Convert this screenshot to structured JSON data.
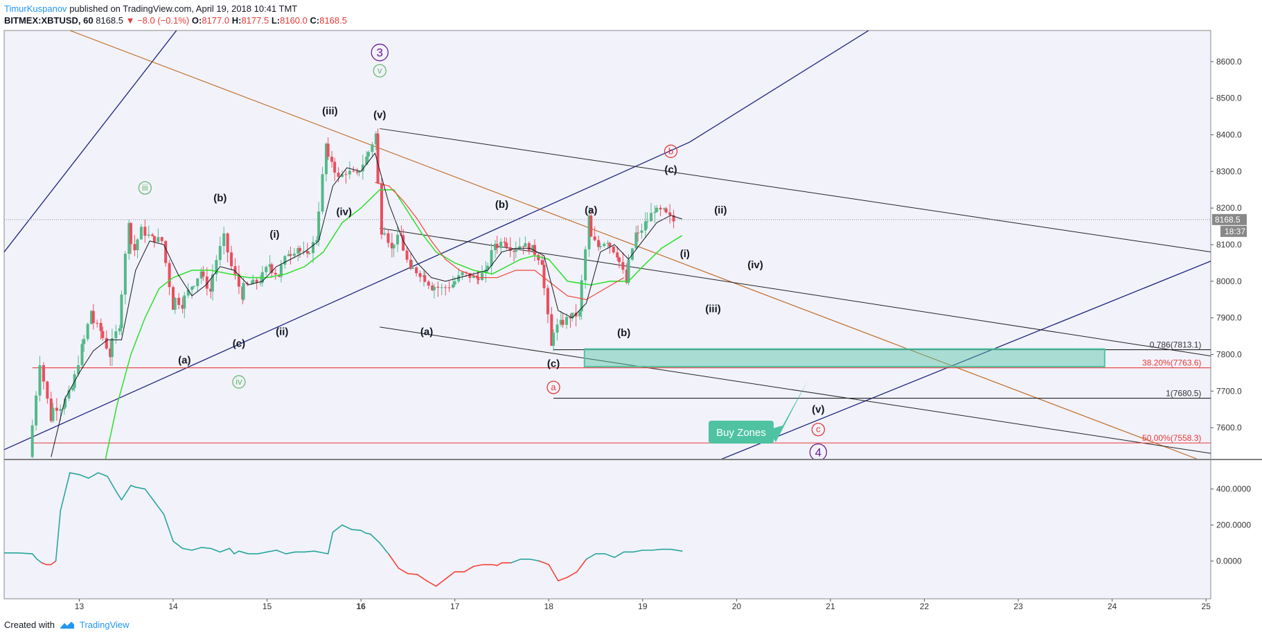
{
  "header": {
    "author": "TimurKuspanov",
    "published": "published on TradingView.com, April 19, 2018 10:41 TMT",
    "symbol": "BITMEX:XBTUSD, 60",
    "last": "8168.5",
    "change": "−8.0 (−0.1%)",
    "open_label": "O:",
    "open": "8177.0",
    "high_label": "H:",
    "high": "8177.5",
    "low_label": "L:",
    "low": "8160.0",
    "close_label": "C:",
    "close": "8168.5"
  },
  "footer": {
    "created_with": "Created with",
    "brand": "TradingView"
  },
  "colors": {
    "bull": "#26a69a",
    "bull_candle": "#53b987",
    "bear": "#eb4d5c",
    "ma_fast": "#131722",
    "ma_green": "#34e034",
    "ma_red": "#f44336",
    "channel": "#1a237e",
    "trend": "#c0651a",
    "zone": "#4fc3a1"
  },
  "chart_data": [
    {
      "type": "candlestick",
      "title": "BITMEX:XBTUSD, 60",
      "x_ticks": [
        "13",
        "14",
        "15",
        "16",
        "17",
        "18",
        "19",
        "20",
        "21",
        "22",
        "23",
        "24",
        "25"
      ],
      "x_range": [
        12.2,
        25.05
      ],
      "y_ticks": [
        "8600.0",
        "8500.0",
        "8400.0",
        "8300.0",
        "8200.0",
        "8100.0",
        "8000.0",
        "7900.0",
        "7800.0",
        "7700.0",
        "7600.0"
      ],
      "ylim": [
        7515,
        8685
      ],
      "last_price": {
        "value": 8168.5,
        "label": "8168.5",
        "countdown": "18:37"
      },
      "price_path": [
        [
          12.5,
          7520
        ],
        [
          12.62,
          7780
        ],
        [
          12.72,
          7650
        ],
        [
          12.85,
          7660
        ],
        [
          12.95,
          7700
        ],
        [
          13.05,
          7800
        ],
        [
          13.15,
          7900
        ],
        [
          13.25,
          7870
        ],
        [
          13.35,
          7810
        ],
        [
          13.45,
          7870
        ],
        [
          13.55,
          8120
        ],
        [
          13.62,
          8090
        ],
        [
          13.7,
          8140
        ],
        [
          13.8,
          8120
        ],
        [
          13.92,
          8110
        ],
        [
          14.02,
          7960
        ],
        [
          14.12,
          7940
        ],
        [
          14.22,
          7980
        ],
        [
          14.32,
          8020
        ],
        [
          14.42,
          7980
        ],
        [
          14.5,
          8060
        ],
        [
          14.58,
          8120
        ],
        [
          14.66,
          8040
        ],
        [
          14.75,
          7980
        ],
        [
          14.85,
          7990
        ],
        [
          14.95,
          8000
        ],
        [
          15.05,
          8040
        ],
        [
          15.15,
          8020
        ],
        [
          15.25,
          8070
        ],
        [
          15.35,
          8090
        ],
        [
          15.45,
          8070
        ],
        [
          15.55,
          8110
        ],
        [
          15.65,
          8330
        ],
        [
          15.72,
          8330
        ],
        [
          15.8,
          8280
        ],
        [
          15.88,
          8300
        ],
        [
          15.98,
          8290
        ],
        [
          16.08,
          8330
        ],
        [
          16.18,
          8390
        ],
        [
          16.25,
          8170
        ],
        [
          16.35,
          8100
        ],
        [
          16.45,
          8120
        ],
        [
          16.55,
          8040
        ],
        [
          16.68,
          8020
        ],
        [
          16.78,
          7990
        ],
        [
          16.9,
          7980
        ],
        [
          17.0,
          7990
        ],
        [
          17.12,
          8020
        ],
        [
          17.25,
          8010
        ],
        [
          17.35,
          8020
        ],
        [
          17.45,
          8090
        ],
        [
          17.55,
          8110
        ],
        [
          17.65,
          8090
        ],
        [
          17.75,
          8100
        ],
        [
          17.85,
          8090
        ],
        [
          17.95,
          8060
        ],
        [
          18.05,
          7860
        ],
        [
          18.15,
          7880
        ],
        [
          18.25,
          7900
        ],
        [
          18.35,
          7910
        ],
        [
          18.45,
          8130
        ],
        [
          18.55,
          8100
        ],
        [
          18.65,
          8110
        ],
        [
          18.75,
          8080
        ],
        [
          18.85,
          8010
        ],
        [
          18.95,
          8110
        ],
        [
          19.05,
          8150
        ],
        [
          19.15,
          8190
        ],
        [
          19.25,
          8190
        ],
        [
          19.35,
          8168.5
        ]
      ],
      "ma_fast": [
        [
          12.7,
          7520
        ],
        [
          12.85,
          7680
        ],
        [
          13.0,
          7750
        ],
        [
          13.15,
          7810
        ],
        [
          13.3,
          7840
        ],
        [
          13.45,
          7840
        ],
        [
          13.6,
          8030
        ],
        [
          13.75,
          8110
        ],
        [
          13.9,
          8100
        ],
        [
          14.05,
          8020
        ],
        [
          14.2,
          7960
        ],
        [
          14.35,
          7990
        ],
        [
          14.5,
          8040
        ],
        [
          14.65,
          8030
        ],
        [
          14.8,
          7990
        ],
        [
          14.95,
          8000
        ],
        [
          15.1,
          8040
        ],
        [
          15.25,
          8060
        ],
        [
          15.4,
          8080
        ],
        [
          15.55,
          8110
        ],
        [
          15.7,
          8260
        ],
        [
          15.85,
          8310
        ],
        [
          16.0,
          8300
        ],
        [
          16.15,
          8350
        ],
        [
          16.3,
          8210
        ],
        [
          16.45,
          8110
        ],
        [
          16.6,
          8050
        ],
        [
          16.75,
          8010
        ],
        [
          16.9,
          8000
        ],
        [
          17.05,
          8010
        ],
        [
          17.2,
          8020
        ],
        [
          17.35,
          8030
        ],
        [
          17.5,
          8080
        ],
        [
          17.65,
          8090
        ],
        [
          17.8,
          8090
        ],
        [
          17.95,
          8070
        ],
        [
          18.1,
          7920
        ],
        [
          18.25,
          7900
        ],
        [
          18.4,
          7940
        ],
        [
          18.55,
          8080
        ],
        [
          18.7,
          8100
        ],
        [
          18.85,
          8060
        ],
        [
          19.0,
          8110
        ],
        [
          19.15,
          8160
        ],
        [
          19.3,
          8180
        ],
        [
          19.42,
          8170
        ]
      ],
      "ma_green": [
        [
          13.28,
          7515
        ],
        [
          13.4,
          7660
        ],
        [
          13.55,
          7800
        ],
        [
          13.7,
          7900
        ],
        [
          13.85,
          7980
        ],
        [
          14.0,
          8010
        ],
        [
          14.2,
          8030
        ],
        [
          14.4,
          8030
        ],
        [
          14.6,
          8020
        ],
        [
          14.8,
          8010
        ],
        [
          15.0,
          8010
        ],
        [
          15.2,
          8020
        ],
        [
          15.4,
          8040
        ],
        [
          15.6,
          8080
        ],
        [
          15.8,
          8160
        ],
        [
          16.0,
          8200
        ],
        [
          16.2,
          8250
        ],
        [
          16.35,
          8250
        ],
        [
          16.5,
          8190
        ],
        [
          16.65,
          8130
        ],
        [
          16.8,
          8080
        ],
        [
          17.0,
          8050
        ],
        [
          17.2,
          8030
        ],
        [
          17.4,
          8020
        ],
        [
          17.55,
          8040
        ],
        [
          17.7,
          8060
        ],
        [
          17.85,
          8070
        ],
        [
          18.0,
          8060
        ],
        [
          18.2,
          8000
        ],
        [
          18.45,
          7990
        ],
        [
          18.65,
          8000
        ],
        [
          18.85,
          8000
        ],
        [
          19.0,
          8040
        ],
        [
          19.2,
          8090
        ],
        [
          19.42,
          8125
        ]
      ],
      "ma_red": [
        [
          16.15,
          8270
        ],
        [
          16.3,
          8260
        ],
        [
          16.45,
          8220
        ],
        [
          16.6,
          8170
        ],
        [
          16.75,
          8110
        ],
        [
          16.9,
          8060
        ],
        [
          17.05,
          8030
        ],
        [
          17.25,
          8010
        ],
        [
          17.45,
          8010
        ],
        [
          17.65,
          8030
        ],
        [
          17.85,
          8030
        ],
        [
          18.05,
          7990
        ],
        [
          18.2,
          7960
        ],
        [
          18.4,
          7950
        ],
        [
          18.6,
          7980
        ],
        [
          18.8,
          8010
        ]
      ],
      "fibonacci": [
        {
          "label": "0.786(7813.1)",
          "value": 7813.1
        },
        {
          "label": "38.20%(7763.6)",
          "value": 7763.6
        },
        {
          "label": "1(7680.5)",
          "value": 7680.5
        },
        {
          "label": "50.00%(7558.3)",
          "value": 7558.3
        }
      ],
      "buy_zone": {
        "from_x": 18.38,
        "to_x": 23.92,
        "top": 7815,
        "bottom": 7767,
        "label": "Buy Zones"
      },
      "wave_labels": [
        {
          "text": "3",
          "x": 16.2,
          "y": 8625,
          "style": "circle-purple"
        },
        {
          "text": "v",
          "x": 16.2,
          "y": 8575,
          "style": "circle-green"
        },
        {
          "text": "(v)",
          "x": 16.2,
          "y": 8455,
          "style": "plain"
        },
        {
          "text": "(iii)",
          "x": 15.67,
          "y": 8465,
          "style": "plain"
        },
        {
          "text": "(iv)",
          "x": 15.82,
          "y": 8190,
          "style": "plain"
        },
        {
          "text": "iii",
          "x": 13.7,
          "y": 8255,
          "style": "circle-green"
        },
        {
          "text": "(b)",
          "x": 14.5,
          "y": 8228,
          "style": "plain"
        },
        {
          "text": "(i)",
          "x": 15.08,
          "y": 8128,
          "style": "plain"
        },
        {
          "text": "(ii)",
          "x": 15.16,
          "y": 7862,
          "style": "plain"
        },
        {
          "text": "(c)",
          "x": 14.7,
          "y": 7830,
          "style": "plain"
        },
        {
          "text": "(a)",
          "x": 14.12,
          "y": 7785,
          "style": "plain"
        },
        {
          "text": "iv",
          "x": 14.7,
          "y": 7725,
          "style": "circle-green"
        },
        {
          "text": "(a)",
          "x": 16.7,
          "y": 7862,
          "style": "plain"
        },
        {
          "text": "(b)",
          "x": 17.5,
          "y": 8210,
          "style": "plain"
        },
        {
          "text": "(c)",
          "x": 18.05,
          "y": 7775,
          "style": "plain"
        },
        {
          "text": "a",
          "x": 18.05,
          "y": 7710,
          "style": "circle-red"
        },
        {
          "text": "(a)",
          "x": 18.45,
          "y": 8195,
          "style": "plain"
        },
        {
          "text": "(b)",
          "x": 18.8,
          "y": 7860,
          "style": "plain"
        },
        {
          "text": "b",
          "x": 19.3,
          "y": 8355,
          "style": "circle-red"
        },
        {
          "text": "(c)",
          "x": 19.3,
          "y": 8305,
          "style": "plain"
        },
        {
          "text": "(ii)",
          "x": 19.83,
          "y": 8195,
          "style": "plain"
        },
        {
          "text": "(i)",
          "x": 19.45,
          "y": 8075,
          "style": "plain"
        },
        {
          "text": "(iv)",
          "x": 20.2,
          "y": 8045,
          "style": "plain"
        },
        {
          "text": "(iii)",
          "x": 19.75,
          "y": 7925,
          "style": "plain"
        },
        {
          "text": "(v)",
          "x": 20.87,
          "y": 7650,
          "style": "plain"
        },
        {
          "text": "c",
          "x": 20.87,
          "y": 7595,
          "style": "circle-red"
        },
        {
          "text": "4",
          "x": 20.87,
          "y": 7533,
          "style": "circle-purple"
        }
      ]
    },
    {
      "type": "line",
      "title": "",
      "y_ticks": [
        "400.0000",
        "200.0000",
        "0.0000"
      ],
      "ylim": [
        -210,
        560
      ],
      "x": [
        12.2,
        12.35,
        12.5,
        12.55,
        12.6,
        12.65,
        12.7,
        12.75,
        12.8,
        12.9,
        13.0,
        13.1,
        13.2,
        13.3,
        13.4,
        13.45,
        13.5,
        13.55,
        13.6,
        13.7,
        13.8,
        13.9,
        14.0,
        14.1,
        14.2,
        14.3,
        14.4,
        14.5,
        14.6,
        14.65,
        14.7,
        14.8,
        14.9,
        15.0,
        15.1,
        15.2,
        15.3,
        15.4,
        15.5,
        15.6,
        15.65,
        15.7,
        15.8,
        15.9,
        16.0,
        16.05,
        16.1,
        16.2,
        16.3,
        16.4,
        16.5,
        16.6,
        16.7,
        16.8,
        16.9,
        17.0,
        17.1,
        17.2,
        17.3,
        17.4,
        17.45,
        17.5,
        17.6,
        17.7,
        17.8,
        17.9,
        18.0,
        18.1,
        18.2,
        18.3,
        18.4,
        18.5,
        18.6,
        18.7,
        18.8,
        18.9,
        19.0,
        19.1,
        19.2,
        19.3,
        19.42
      ],
      "values": [
        45,
        45,
        40,
        10,
        -10,
        -20,
        -20,
        0,
        280,
        490,
        480,
        460,
        490,
        470,
        380,
        340,
        380,
        420,
        410,
        400,
        330,
        260,
        110,
        70,
        60,
        75,
        70,
        50,
        70,
        40,
        55,
        40,
        40,
        50,
        60,
        40,
        50,
        50,
        55,
        45,
        40,
        160,
        200,
        175,
        170,
        155,
        150,
        100,
        35,
        -40,
        -70,
        -75,
        -110,
        -140,
        -100,
        -60,
        -60,
        -30,
        -20,
        -20,
        -25,
        -10,
        -10,
        10,
        10,
        0,
        -20,
        -110,
        -90,
        -60,
        10,
        40,
        40,
        20,
        50,
        50,
        60,
        60,
        65,
        65,
        55
      ],
      "negative_threshold": 0
    }
  ]
}
